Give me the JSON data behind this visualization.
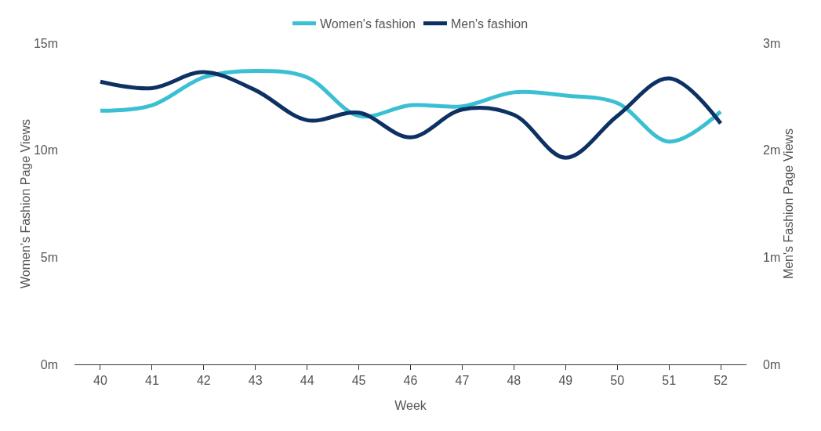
{
  "chart_data": {
    "type": "line",
    "xlabel": "Week",
    "ylabel": "Women's Fashion Page Views",
    "y2label": "Men's Fashion Page Views",
    "categories": [
      "40",
      "41",
      "42",
      "43",
      "44",
      "45",
      "46",
      "47",
      "48",
      "49",
      "50",
      "51",
      "52"
    ],
    "series": [
      {
        "name": "Women's fashion",
        "color": "#3bbfd3",
        "values": [
          11.84,
          12.1,
          13.4,
          13.7,
          13.4,
          11.6,
          12.1,
          12.05,
          12.7,
          12.55,
          12.2,
          10.4,
          11.8
        ]
      },
      {
        "name": "Men's fashion",
        "color": "#0e3163",
        "axis": "y2",
        "values": [
          2.64,
          2.58,
          2.73,
          2.56,
          2.28,
          2.35,
          2.12,
          2.38,
          2.33,
          1.93,
          2.32,
          2.67,
          2.25
        ]
      }
    ],
    "ylim": [
      0,
      15
    ],
    "yticks": [
      {
        "value": 0,
        "label": "0m"
      },
      {
        "value": 5,
        "label": "5m"
      },
      {
        "value": 10,
        "label": "10m"
      },
      {
        "value": 15,
        "label": "15m"
      }
    ],
    "y2lim": [
      0,
      3
    ],
    "y2ticks": [
      {
        "value": 0,
        "label": "0m"
      },
      {
        "value": 1,
        "label": "1m"
      },
      {
        "value": 2,
        "label": "2m"
      },
      {
        "value": 3,
        "label": "3m"
      }
    ],
    "grid": false,
    "legend": "top",
    "marker": "none",
    "line_style": "solid"
  }
}
